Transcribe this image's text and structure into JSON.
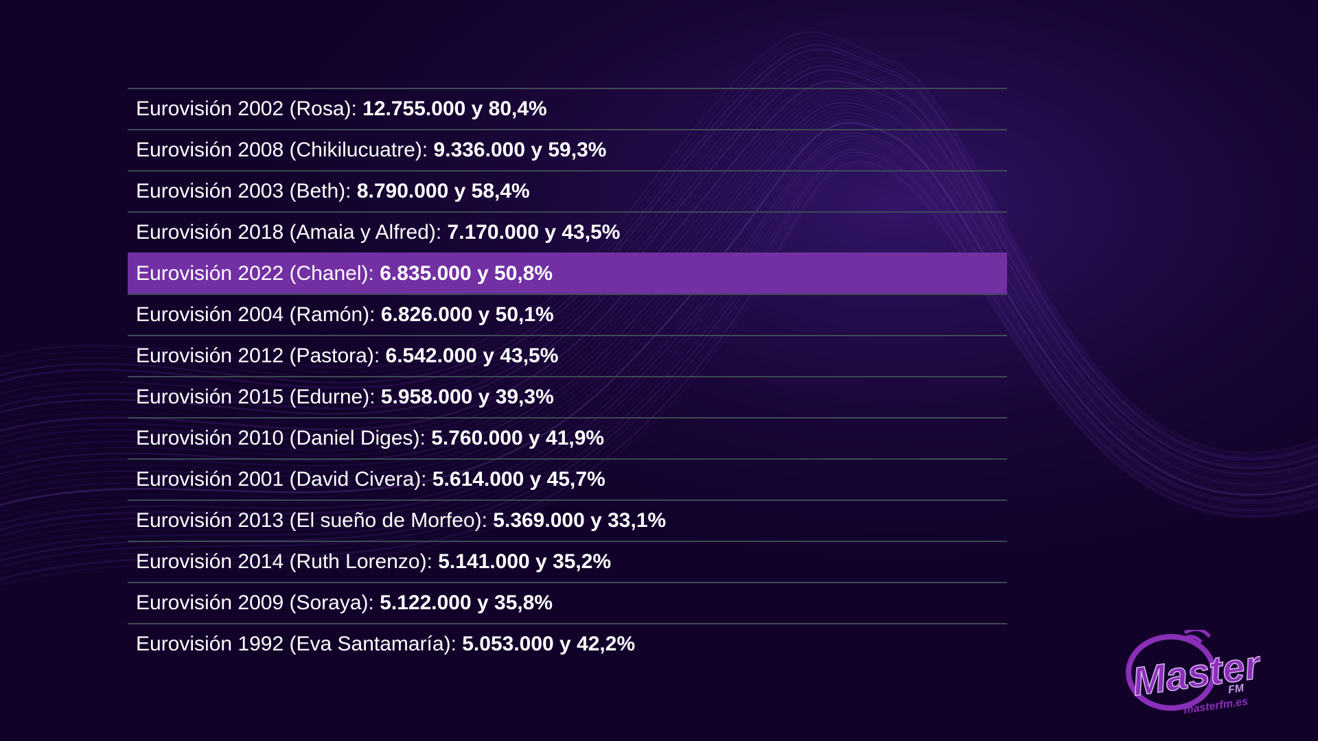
{
  "colors": {
    "background": "#12022a",
    "highlight": "#7230a3",
    "divider": "#3f4957",
    "text": "#ffffff",
    "logo": "#8a2fb8"
  },
  "rows": [
    {
      "label": "Eurovisión 2002 (Rosa): ",
      "figures": "12.755.000 y 80,4%"
    },
    {
      "label": "Eurovisión 2008 (Chikilucuatre): ",
      "figures": "9.336.000 y 59,3%"
    },
    {
      "label": "Eurovisión 2003 (Beth): ",
      "figures": "8.790.000 y 58,4%"
    },
    {
      "label": "Eurovisión 2018 (Amaia y Alfred): ",
      "figures": "7.170.000 y 43,5%"
    },
    {
      "label": "Eurovisión 2022 (Chanel): ",
      "figures": "6.835.000 y 50,8%",
      "highlighted": true
    },
    {
      "label": "Eurovisión 2004 (Ramón): ",
      "figures": "6.826.000 y 50,1%"
    },
    {
      "label": "Eurovisión 2012 (Pastora): ",
      "figures": "6.542.000 y 43,5%"
    },
    {
      "label": "Eurovisión 2015 (Edurne): ",
      "figures": "5.958.000 y 39,3%"
    },
    {
      "label": "Eurovisión 2010 (Daniel Diges): ",
      "figures": "5.760.000 y 41,9%"
    },
    {
      "label": "Eurovisión 2001 (David Civera): ",
      "figures": "5.614.000 y 45,7%"
    },
    {
      "label": "Eurovisión 2013 (El sueño de Morfeo): ",
      "figures": "5.369.000 y 33,1%"
    },
    {
      "label": "Eurovisión 2014 (Ruth Lorenzo): ",
      "figures": "5.141.000 y 35,2%"
    },
    {
      "label": "Eurovisión 2009 (Soraya): ",
      "figures": "5.122.000 y 35,8%"
    },
    {
      "label": "Eurovisión 1992 (Eva Santamaría): ",
      "figures": "5.053.000 y 42,2%"
    }
  ],
  "logo": {
    "brand": "Master",
    "fm": "FM",
    "site": "masterfm.es"
  }
}
